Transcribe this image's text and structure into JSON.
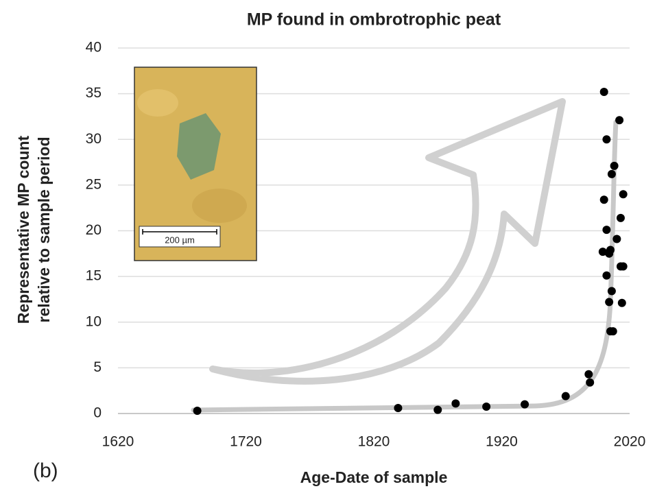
{
  "chart_data": {
    "type": "scatter",
    "title": "MP found in ombrotrophic peat",
    "xlabel": "Age-Date of sample",
    "ylabel": [
      "Representative MP count",
      "relative to sample period"
    ],
    "panel_label": "(b)",
    "inset_scale_label": "200 µm",
    "x": [
      1682,
      1839,
      1870,
      1884,
      1908,
      1938,
      1970,
      1988,
      1989,
      2000,
      2002,
      2000,
      1999,
      2002,
      2004,
      2005,
      2002,
      2006,
      2008,
      2012,
      2015,
      2013,
      2010,
      2013,
      2015,
      2006,
      2004,
      2014,
      2005,
      2007
    ],
    "values": [
      0.3,
      0.6,
      0.4,
      1.1,
      0.75,
      1.0,
      1.9,
      4.3,
      3.4,
      35.2,
      30,
      23.4,
      17.7,
      20.1,
      17.5,
      17.9,
      15.1,
      26.2,
      27.1,
      32.1,
      24,
      21.4,
      19.1,
      16.1,
      16.1,
      13.4,
      12.2,
      12.1,
      9,
      9
    ],
    "color": "#000000",
    "xlim": [
      1620,
      2020
    ],
    "xticks": [
      1620,
      1720,
      1820,
      1920,
      2020
    ],
    "ylim": [
      0,
      40
    ],
    "yticks": [
      0,
      5,
      10,
      15,
      20,
      25,
      30,
      35,
      40
    ],
    "grid": true
  }
}
